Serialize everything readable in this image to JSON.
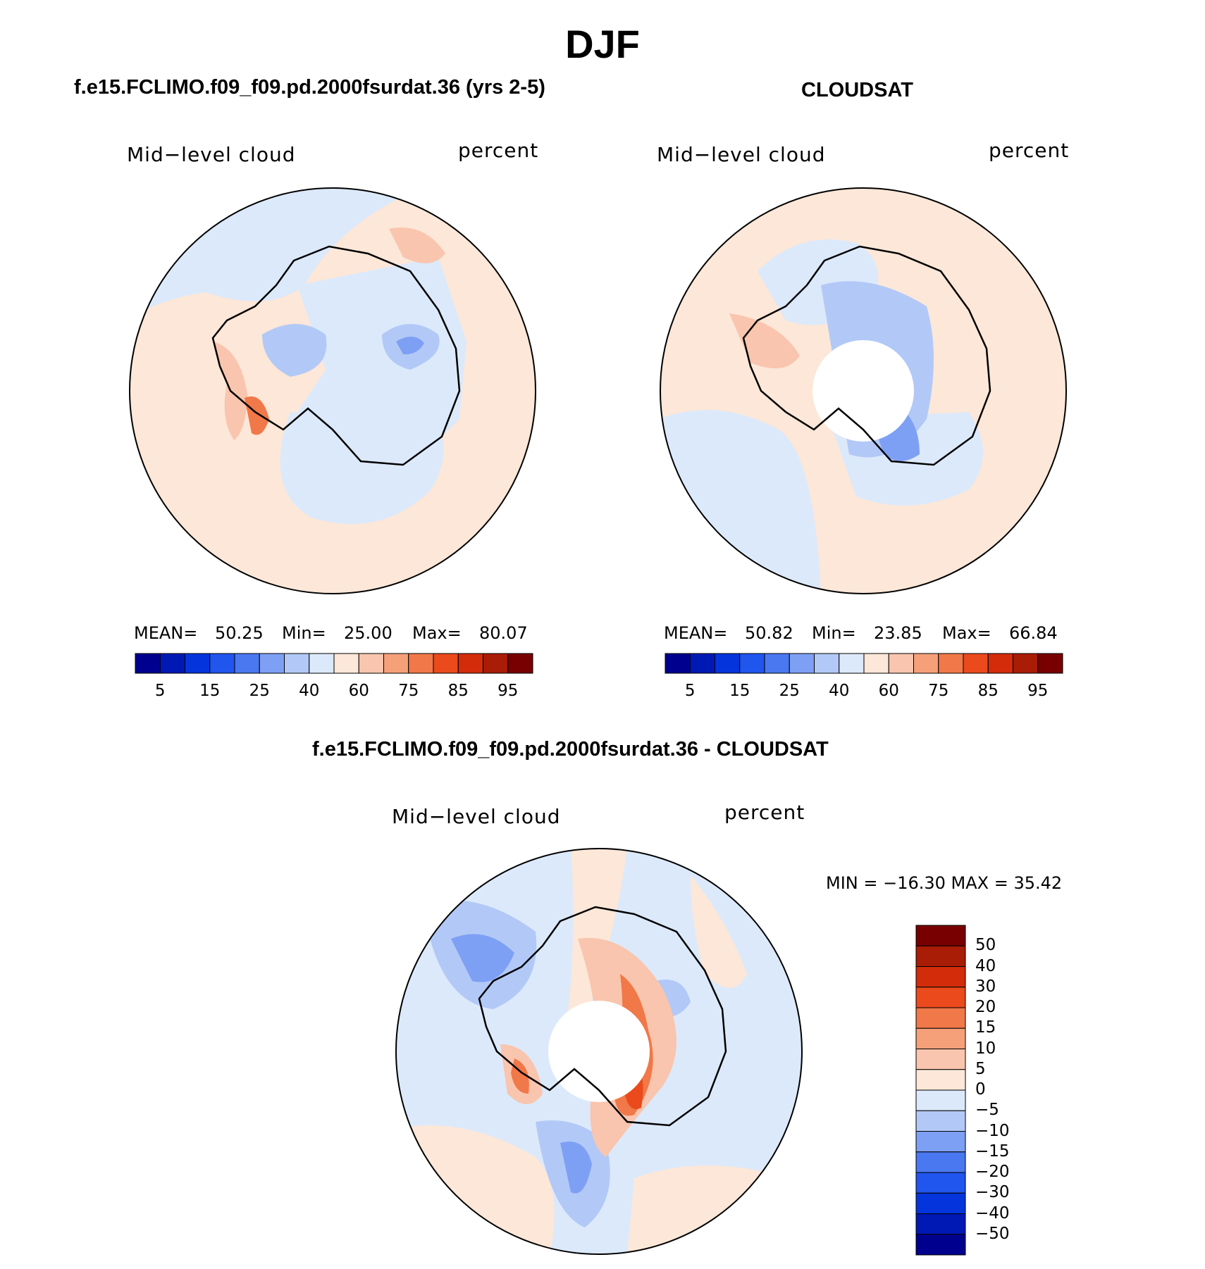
{
  "figure": {
    "season": "DJF"
  },
  "panels": [
    {
      "title": "f.e15.FCLIMO.f09_f09.pd.2000fsurdat.36 (yrs 2-5)",
      "variable": "Mid−level cloud",
      "units": "percent",
      "stats": {
        "mean_label": "MEAN=",
        "mean": "50.25",
        "min_label": "Min=",
        "min": "25.00",
        "max_label": "Max=",
        "max": "80.07"
      }
    },
    {
      "title": "CLOUDSAT",
      "variable": "Mid−level cloud",
      "units": "percent",
      "stats": {
        "mean_label": "MEAN=",
        "mean": "50.82",
        "min_label": "Min=",
        "min": "23.85",
        "max_label": "Max=",
        "max": "66.84"
      }
    },
    {
      "title": "f.e15.FCLIMO.f09_f09.pd.2000fsurdat.36 - CLOUDSAT",
      "variable": "Mid−level cloud",
      "units": "percent",
      "minmax": "MIN = −16.30 MAX =   35.42"
    }
  ],
  "colorbar_abs": {
    "tick_labels": [
      "5",
      "15",
      "25",
      "40",
      "60",
      "75",
      "85",
      "95"
    ],
    "colors": [
      "#00008f",
      "#0019b4",
      "#0435dc",
      "#2055ee",
      "#4a78f0",
      "#7ea0f4",
      "#b2c9f7",
      "#dce9fb",
      "#fce7d8",
      "#f9c5ae",
      "#f6a07a",
      "#f17848",
      "#ea4a1c",
      "#d32c0a",
      "#a91c06",
      "#780000"
    ]
  },
  "colorbar_diff": {
    "tick_labels": [
      "50",
      "40",
      "30",
      "20",
      "15",
      "10",
      "5",
      "0",
      "−5",
      "−10",
      "−15",
      "−20",
      "−30",
      "−40",
      "−50"
    ],
    "colors": [
      "#780000",
      "#a91c06",
      "#d32c0a",
      "#ea4a1c",
      "#f17848",
      "#f6a07a",
      "#f9c5ae",
      "#fce7d8",
      "#dce9fb",
      "#b2c9f7",
      "#7ea0f4",
      "#4a78f0",
      "#2055ee",
      "#0435dc",
      "#0019b4",
      "#00008f"
    ]
  },
  "map_colors": {
    "ocean_warm": "#fce7d8",
    "ocean_cool": "#dce9fb",
    "mid_warm": "#f9c5ae",
    "strong_warm": "#f17848",
    "very_warm": "#ea4a1c",
    "mid_cool": "#b2c9f7",
    "strong_cool": "#7ea0f4",
    "very_cool": "#4a78f0"
  }
}
